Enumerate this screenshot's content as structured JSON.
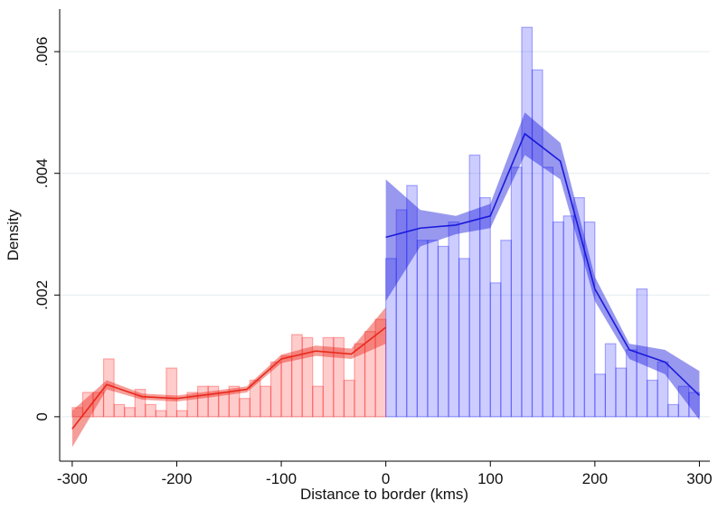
{
  "chart_data": {
    "type": "histogram",
    "x_label": "Distance to border (kms)",
    "y_label": "Density",
    "xlim": [
      -312,
      310
    ],
    "ylim": [
      -0.00073,
      0.0067
    ],
    "xticks": [
      -300,
      -200,
      -100,
      0,
      100,
      200,
      300
    ],
    "yticks": [
      0,
      {
        "value": 0.002,
        "label": ".002"
      },
      {
        "value": 0.004,
        "label": ".004"
      },
      {
        "value": 0.006,
        "label": ".006"
      }
    ],
    "grid": true,
    "histograms": [
      {
        "color": "#ff0000",
        "bins": [
          -300,
          -290,
          -280,
          -270,
          -260,
          -250,
          -240,
          -230,
          -220,
          -210,
          -200,
          -190,
          -180,
          -170,
          -160,
          -150,
          -140,
          -130,
          -120,
          -110,
          -100,
          -90,
          -80,
          -70,
          -60,
          -50,
          -40,
          -30,
          -20,
          -10,
          0
        ],
        "counts": [
          0.00015,
          0.0004,
          0.0004,
          0.00095,
          0.0002,
          0.00015,
          0.00045,
          0.0002,
          0.0001,
          0.0008,
          0.0001,
          0.0004,
          0.0005,
          0.0005,
          0.0004,
          0.0005,
          0.0003,
          0.0006,
          0.0005,
          0.0009,
          0.001,
          0.00135,
          0.0013,
          0.0005,
          0.0013,
          0.0013,
          0.0006,
          0.0012,
          0.0014,
          0.0016
        ]
      },
      {
        "color": "#0000ff",
        "bins": [
          0,
          10,
          20,
          30,
          40,
          50,
          60,
          70,
          80,
          90,
          100,
          110,
          120,
          130,
          140,
          150,
          160,
          170,
          180,
          190,
          200,
          210,
          220,
          230,
          240,
          250,
          260,
          270,
          280,
          290,
          300
        ],
        "counts": [
          0.0026,
          0.0034,
          0.0038,
          0.0029,
          0.0029,
          0.0028,
          0.0032,
          0.0026,
          0.0043,
          0.0036,
          0.0022,
          0.0029,
          0.0041,
          0.0064,
          0.0057,
          0.0041,
          0.0032,
          0.0033,
          0.0036,
          0.0032,
          0.0007,
          0.0012,
          0.0008,
          0.0011,
          0.0021,
          0.0006,
          0.0009,
          0.0002,
          0.0005,
          0.0004
        ]
      }
    ],
    "lines": [
      {
        "color": "#e8291c",
        "x": [
          -300,
          -267,
          -233,
          -200,
          -167,
          -133,
          -100,
          -67,
          -33,
          0
        ],
        "values": [
          -0.0002,
          0.00053,
          0.00033,
          0.0003,
          0.00037,
          0.00045,
          0.00095,
          0.00108,
          0.00103,
          0.00147
        ],
        "lower": [
          -0.0005,
          0.00045,
          0.00028,
          0.00025,
          0.00032,
          0.0004,
          0.00088,
          0.001,
          0.00095,
          0.0012
        ],
        "upper": [
          0.0001,
          0.0006,
          0.00038,
          0.00035,
          0.00042,
          0.0005,
          0.00102,
          0.00117,
          0.00112,
          0.0018
        ]
      },
      {
        "color": "#1a1adb",
        "x": [
          0,
          33,
          67,
          100,
          133,
          167,
          200,
          233,
          267,
          300
        ],
        "values": [
          0.00295,
          0.0031,
          0.00315,
          0.0033,
          0.00465,
          0.0042,
          0.0021,
          0.0011,
          0.0009,
          0.00035
        ],
        "lower": [
          0.0019,
          0.0028,
          0.003,
          0.0031,
          0.0043,
          0.0039,
          0.0019,
          0.00095,
          0.0007,
          -5e-05
        ],
        "upper": [
          0.0039,
          0.0034,
          0.0033,
          0.0035,
          0.005,
          0.0045,
          0.0023,
          0.0012,
          0.0011,
          0.00075
        ]
      }
    ]
  }
}
